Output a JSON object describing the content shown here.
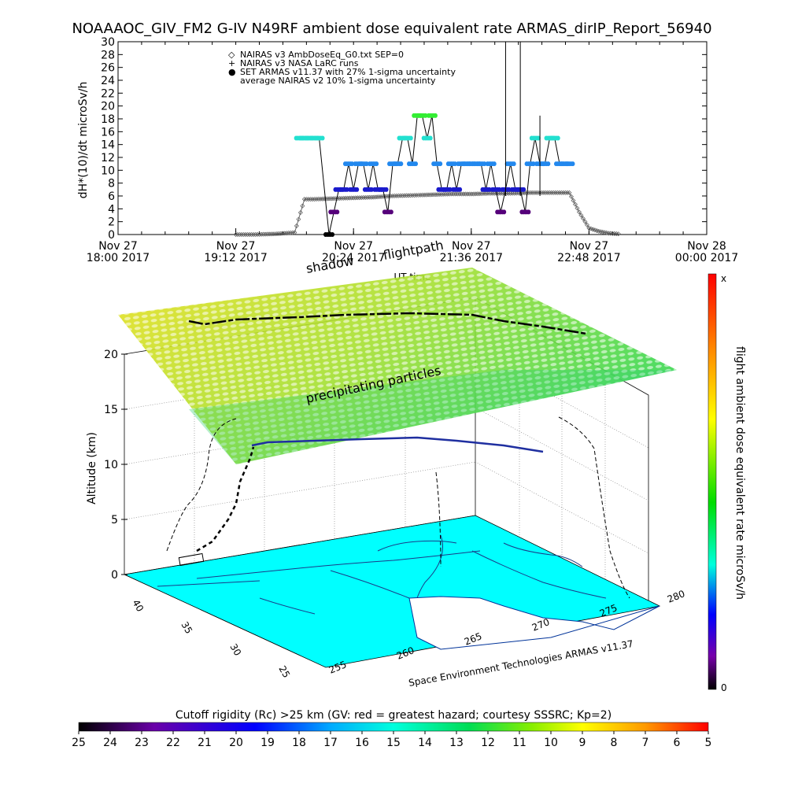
{
  "title": "NOAAAOC_GIV_FM2 G-IV   N49RF  ambient dose equivalent rate ARMAS_dirIP_Report_56940",
  "chart_data": [
    {
      "type": "scatter",
      "ylabel": "dH*(10)/dt microSv/h",
      "xlabel": "UT time",
      "ylim": [
        0,
        30
      ],
      "y_ticks": [
        "0",
        "2",
        "4",
        "6",
        "8",
        "10",
        "12",
        "14",
        "16",
        "18",
        "20",
        "22",
        "24",
        "26",
        "28",
        "30"
      ],
      "x_ticks": [
        {
          "top": "Nov 27",
          "bottom": "18:00 2017"
        },
        {
          "top": "Nov 27",
          "bottom": "19:12 2017"
        },
        {
          "top": "Nov 27",
          "bottom": "20:24 2017"
        },
        {
          "top": "Nov 27",
          "bottom": "21:36 2017"
        },
        {
          "top": "Nov 27",
          "bottom": "22:48 2017"
        },
        {
          "top": "Nov 28",
          "bottom": "00:00 2017"
        }
      ],
      "xlim_hours": [
        18.0,
        24.0
      ],
      "legend": [
        {
          "symbol": "◇",
          "label": "NAIRAS v3 AmbDoseEq_G0.txt SEP=0"
        },
        {
          "symbol": "+",
          "label": "NAIRAS v3 NASA LaRC runs"
        },
        {
          "symbol": "●",
          "label": "SET ARMAS v11.37 with 27% 1-sigma uncertainty"
        },
        {
          "symbol": "",
          "label": "average NAIRAS v2 10% 1-sigma uncertainty"
        }
      ],
      "legend_position": "top-left",
      "series": [
        {
          "name": "SET ARMAS v11.37 with 27% 1-sigma uncertainty",
          "x_hours": [
            19.85,
            19.9,
            19.95,
            20.0,
            20.05,
            20.15,
            20.2,
            20.25,
            20.3,
            20.35,
            20.4,
            20.45,
            20.5,
            20.55,
            20.6,
            20.65,
            20.7,
            20.75,
            20.8,
            20.85,
            20.9,
            20.95,
            21.0,
            21.05,
            21.1,
            21.15,
            21.2,
            21.25,
            21.3,
            21.35,
            21.4,
            21.45,
            21.5,
            21.55,
            21.6,
            21.65,
            21.7,
            21.75,
            21.8,
            21.85,
            21.9,
            21.95,
            22.0,
            22.05,
            22.1,
            22.15,
            22.2,
            22.25,
            22.3,
            22.35,
            22.4,
            22.45,
            22.5,
            22.55,
            22.6
          ],
          "values": [
            15,
            15,
            15,
            15,
            15,
            0,
            3.5,
            7,
            7,
            11,
            7,
            11,
            11,
            7,
            11,
            7,
            7,
            3.5,
            11,
            11,
            15,
            15,
            11,
            18.5,
            18.5,
            15,
            18.5,
            11,
            7,
            7,
            11,
            7,
            11,
            11,
            11,
            11,
            11,
            7,
            11,
            7,
            3.5,
            7,
            11,
            7,
            7,
            3.5,
            11,
            15,
            11,
            11,
            15,
            15,
            11,
            11,
            11
          ]
        },
        {
          "name": "NAIRAS v3 AmbDoseEq_G0.txt SEP=0",
          "x_hours": [
            19.2,
            19.4,
            19.6,
            19.8,
            19.9,
            20.0,
            20.2,
            20.4,
            20.6,
            20.8,
            21.0,
            21.2,
            21.4,
            21.6,
            21.8,
            22.0,
            22.2,
            22.4,
            22.6,
            22.7,
            22.8,
            22.9,
            23.0,
            23.1
          ],
          "values": [
            0,
            0,
            0.1,
            0.3,
            5.5,
            5.5,
            5.6,
            5.7,
            5.8,
            6.0,
            6.1,
            6.2,
            6.3,
            6.3,
            6.4,
            6.4,
            6.5,
            6.5,
            6.5,
            3.5,
            1,
            0.5,
            0.2,
            0.1
          ]
        }
      ],
      "spikes": [
        {
          "x_hours": 21.95,
          "value": 30
        },
        {
          "x_hours": 22.1,
          "value": 30
        },
        {
          "x_hours": 22.3,
          "value": 18.5
        }
      ]
    },
    {
      "type": "surface-3d",
      "zlabel": "Altitude (km)",
      "z_ticks": [
        "0",
        "5",
        "10",
        "15",
        "20"
      ],
      "lat_ticks": [
        "40",
        "35",
        "30",
        "25"
      ],
      "lon_ticks": [
        "255",
        "260",
        "265",
        "270",
        "275",
        "280"
      ],
      "annotations": [
        "shadow",
        "flightpath",
        "precipitating particles"
      ],
      "credit": "Space Environment Technologies ARMAS v11.37"
    },
    {
      "type": "colorbar",
      "label": "flight ambient dose equivalent rate microSv/h",
      "top_label": "x",
      "bottom_label": "0",
      "stops": [
        "#ff0000",
        "#ff8800",
        "#ffff00",
        "#00dd00",
        "#00ffdd",
        "#0000ff",
        "#7700aa",
        "#000000"
      ]
    },
    {
      "type": "colorbar",
      "label": "Cutoff rigidity (Rc) >25 km (GV: red = greatest hazard; courtesy SSSRC; Kp=2)",
      "ticks": [
        "25",
        "24",
        "23",
        "22",
        "21",
        "20",
        "19",
        "18",
        "17",
        "16",
        "15",
        "14",
        "13",
        "12",
        "11",
        "10",
        "9",
        "8",
        "7",
        "6",
        "5"
      ],
      "stops": [
        "#000000",
        "#6a00a8",
        "#0000ff",
        "#00aaff",
        "#00ffdd",
        "#00dd55",
        "#88ee00",
        "#ffff00",
        "#ff9900",
        "#ff0000"
      ]
    }
  ],
  "colors": {
    "armas_point": "#1060d0",
    "nairas": "#555555",
    "surface_cyan": "#00ffff",
    "grid": "#888888"
  }
}
